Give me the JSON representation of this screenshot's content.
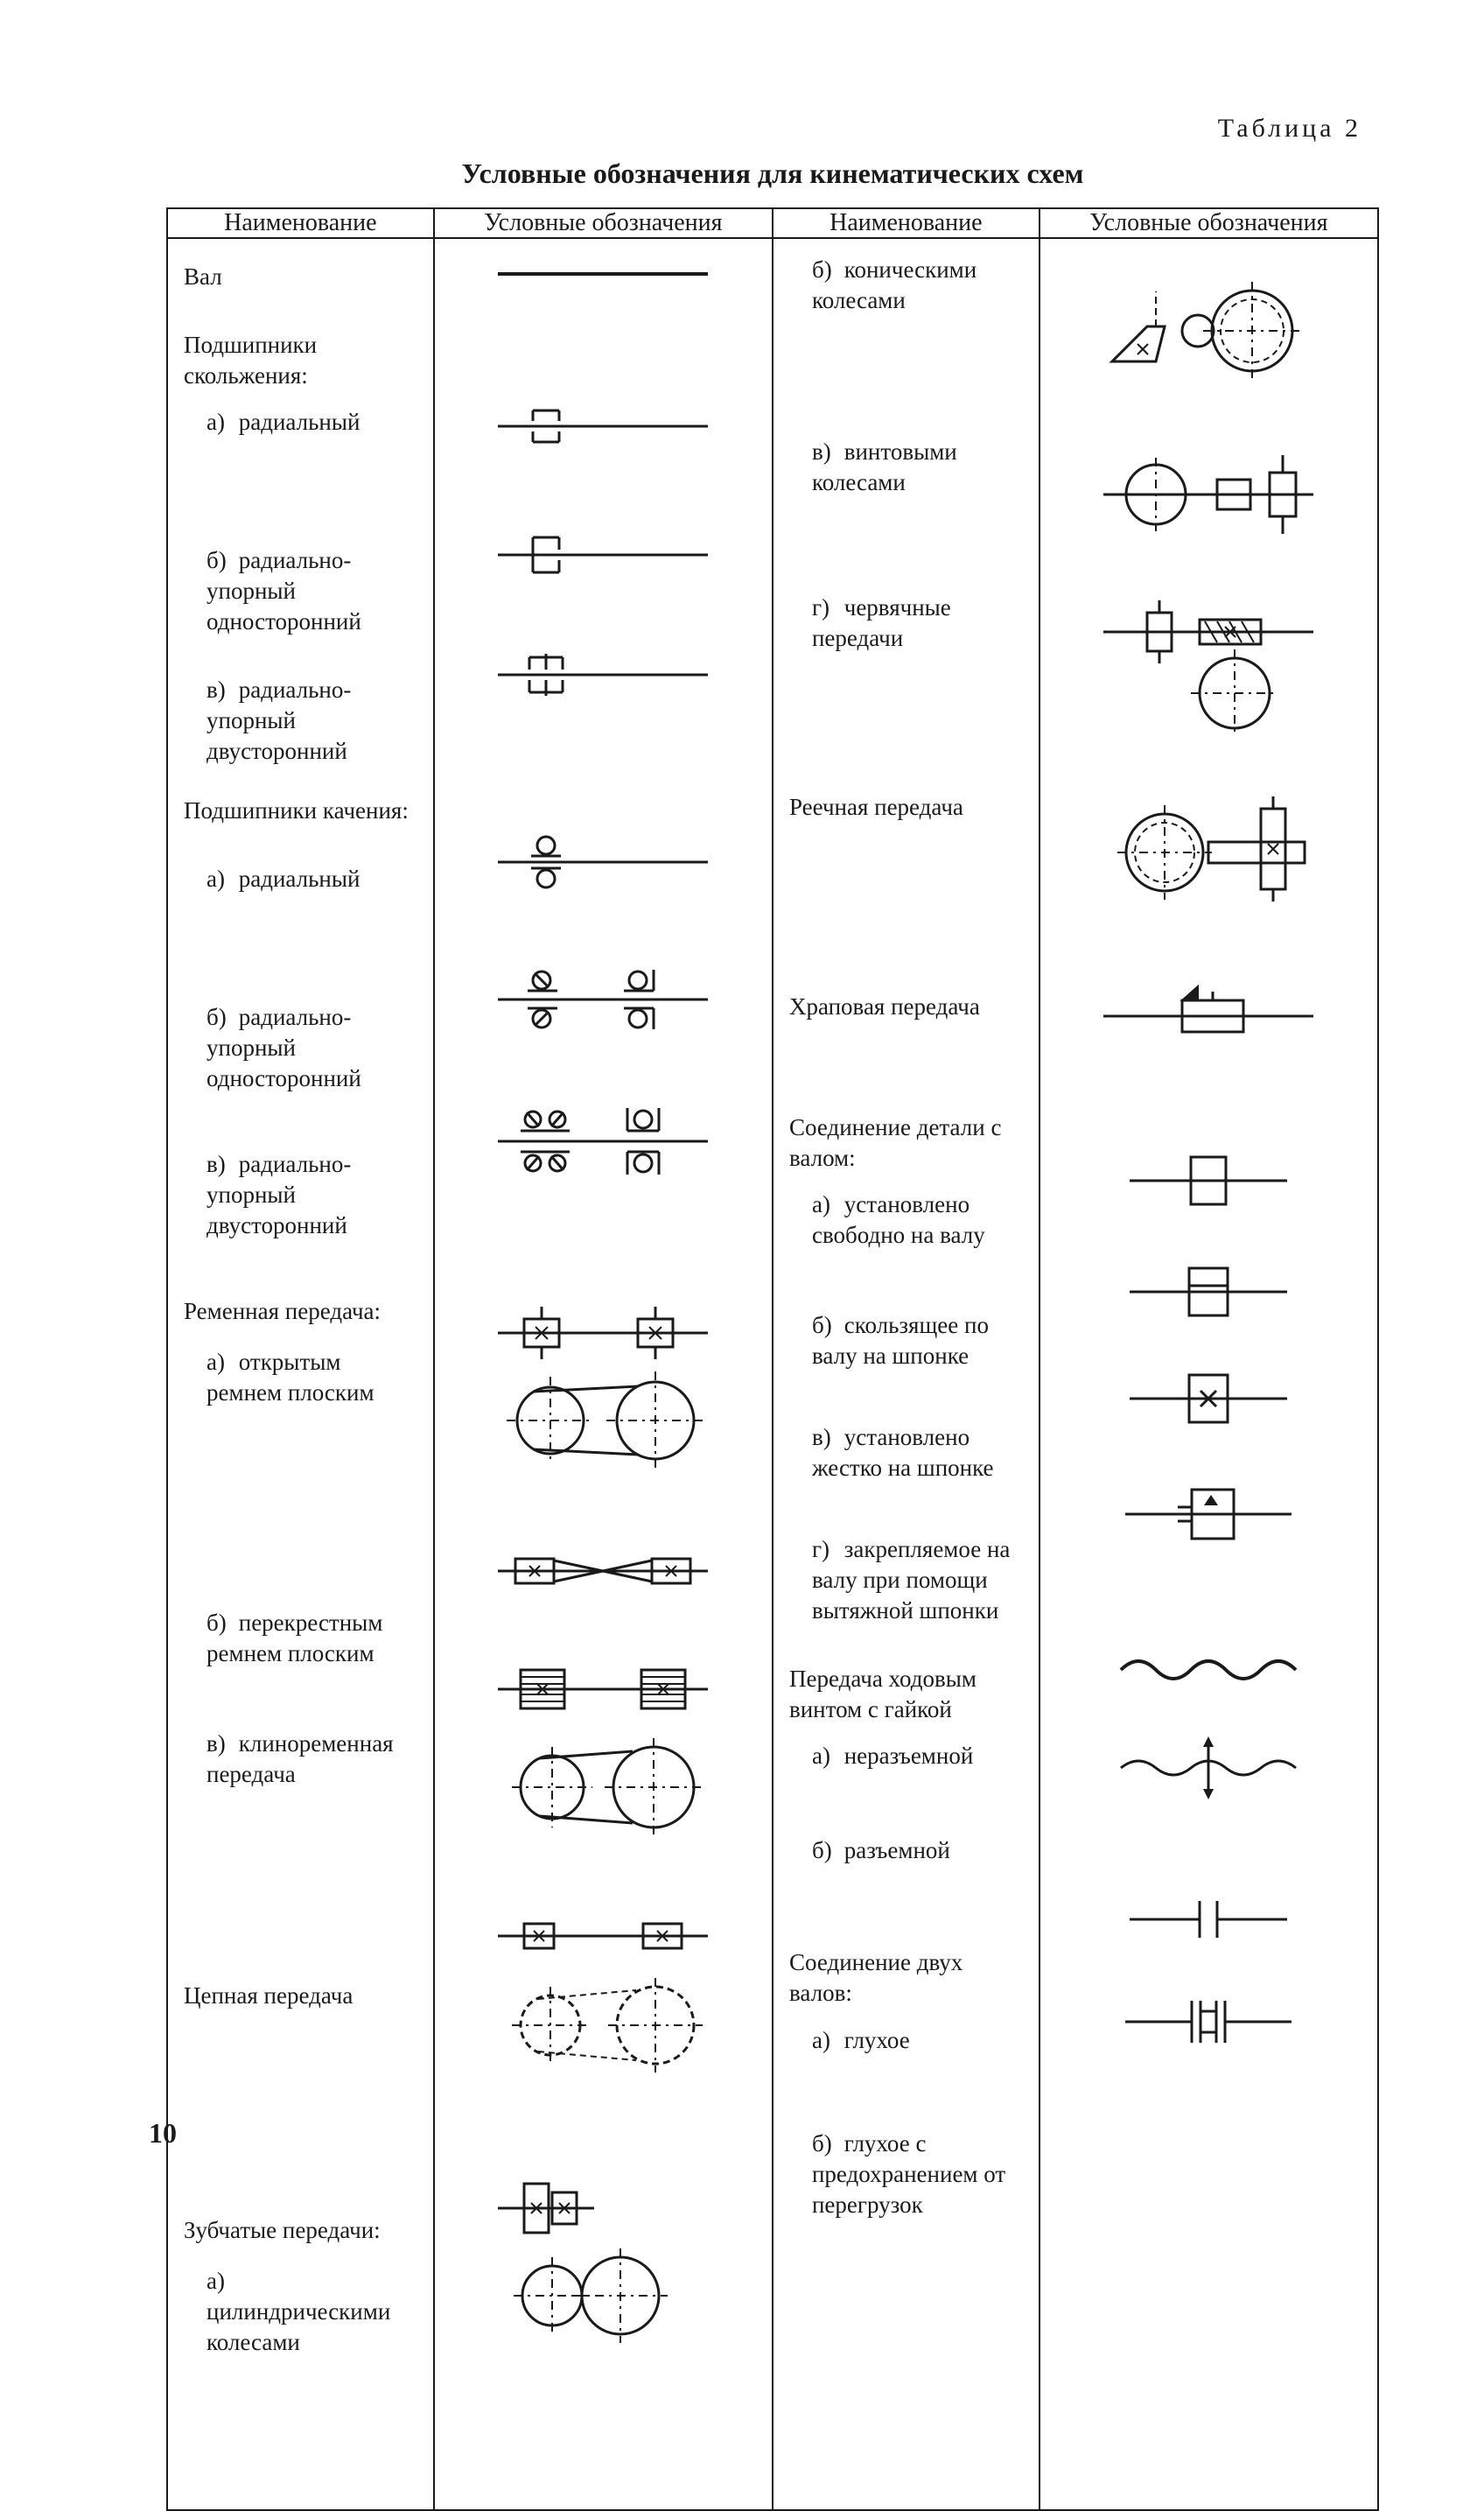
{
  "page_number": "10",
  "table_label": "Таблица 2",
  "table_title": "Условные обозначения для кинематических схем",
  "headers": {
    "name": "Наименование",
    "symbol": "Условные обозначения"
  },
  "colors": {
    "text": "#1a1a1a",
    "bg": "#ffffff",
    "stroke": "#1a1a1a"
  },
  "stroke_width_thin": 2,
  "stroke_width_med": 3,
  "stroke_width_thick": 4,
  "left_column": [
    {
      "type": "head",
      "text": "Вал",
      "symbol": "shaft"
    },
    {
      "type": "head",
      "text": "Подшипники скольжения:"
    },
    {
      "type": "sub",
      "idx": "а)",
      "text": "радиальный",
      "symbol": "plain_radial"
    },
    {
      "type": "sub",
      "idx": "б)",
      "text": "радиально-упорный односторонний",
      "symbol": "plain_thrust_one"
    },
    {
      "type": "sub",
      "idx": "в)",
      "text": "радиально-упорный двусторонний",
      "symbol": "plain_thrust_two"
    },
    {
      "type": "head",
      "text": "Подшипники качения:"
    },
    {
      "type": "sub",
      "idx": "а)",
      "text": "радиальный",
      "symbol": "roll_radial"
    },
    {
      "type": "sub",
      "idx": "б)",
      "text": "радиально-упорный односторонний",
      "symbol": "roll_thrust_one"
    },
    {
      "type": "sub",
      "idx": "в)",
      "text": "радиально-упорный двусторонний",
      "symbol": "roll_thrust_two"
    },
    {
      "type": "head",
      "text": "Ременная передача:"
    },
    {
      "type": "sub",
      "idx": "а)",
      "text": "открытым ремнем плоским",
      "symbol": "belt_open"
    },
    {
      "type": "sub",
      "idx": "б)",
      "text": "перекрестным ремнем плоским",
      "symbol": "belt_cross"
    },
    {
      "type": "sub",
      "idx": "в)",
      "text": "клиноременная передача",
      "symbol": "belt_v"
    },
    {
      "type": "head",
      "text": "Цепная передача",
      "symbol": "chain"
    },
    {
      "type": "head",
      "text": "Зубчатые передачи:"
    },
    {
      "type": "sub",
      "idx": "а)",
      "text": "цилиндрическими колесами",
      "symbol": "gear_cyl"
    }
  ],
  "right_column": [
    {
      "type": "sub",
      "idx": "б)",
      "text": "коническими колесами",
      "symbol": "gear_cone"
    },
    {
      "type": "sub",
      "idx": "в)",
      "text": "винтовыми колесами",
      "symbol": "gear_screw"
    },
    {
      "type": "sub",
      "idx": "г)",
      "text": "червячные передачи",
      "symbol": "gear_worm"
    },
    {
      "type": "head",
      "text": "Реечная передача",
      "symbol": "rack"
    },
    {
      "type": "head",
      "text": "Храповая передача",
      "symbol": "ratchet"
    },
    {
      "type": "head",
      "text": "Соединение детали с валом:"
    },
    {
      "type": "sub",
      "idx": "а)",
      "text": "установлено свободно на валу",
      "symbol": "fit_free"
    },
    {
      "type": "sub",
      "idx": "б)",
      "text": "скользящее по валу на шпонке",
      "symbol": "fit_slide"
    },
    {
      "type": "sub",
      "idx": "в)",
      "text": "установлено жестко на шпонке",
      "symbol": "fit_fixed"
    },
    {
      "type": "sub",
      "idx": "г)",
      "text": "закрепляемое на валу при помощи вытяжной шпонки",
      "symbol": "fit_drawkey"
    },
    {
      "type": "head",
      "text": "Передача ходовым винтом с гайкой"
    },
    {
      "type": "sub",
      "idx": "а)",
      "text": "неразъемной",
      "symbol": "leadscrew_solid"
    },
    {
      "type": "sub",
      "idx": "б)",
      "text": "разъемной",
      "symbol": "leadscrew_split"
    },
    {
      "type": "head",
      "text": "Соединение двух валов:"
    },
    {
      "type": "sub",
      "idx": "а)",
      "text": "глухое",
      "symbol": "coupling_rigid"
    },
    {
      "type": "sub",
      "idx": "б)",
      "text": "глухое с предохранением от перегрузок",
      "symbol": "coupling_safety"
    }
  ],
  "symbol_heights": {
    "shaft": 20,
    "plain_radial": 60,
    "plain_thrust_one": 60,
    "plain_thrust_two": 60,
    "roll_radial": 70,
    "roll_thrust_one": 80,
    "roll_thrust_two": 90,
    "belt_open": 200,
    "belt_cross": 80,
    "belt_v": 220,
    "chain": 200,
    "gear_cyl": 210,
    "gear_cone": 130,
    "gear_screw": 110,
    "gear_worm": 160,
    "rack": 160,
    "ratchet": 80,
    "fit_free": 90,
    "fit_slide": 90,
    "fit_fixed": 90,
    "fit_drawkey": 100,
    "leadscrew_solid": 50,
    "leadscrew_split": 80,
    "coupling_rigid": 70,
    "coupling_safety": 80
  }
}
